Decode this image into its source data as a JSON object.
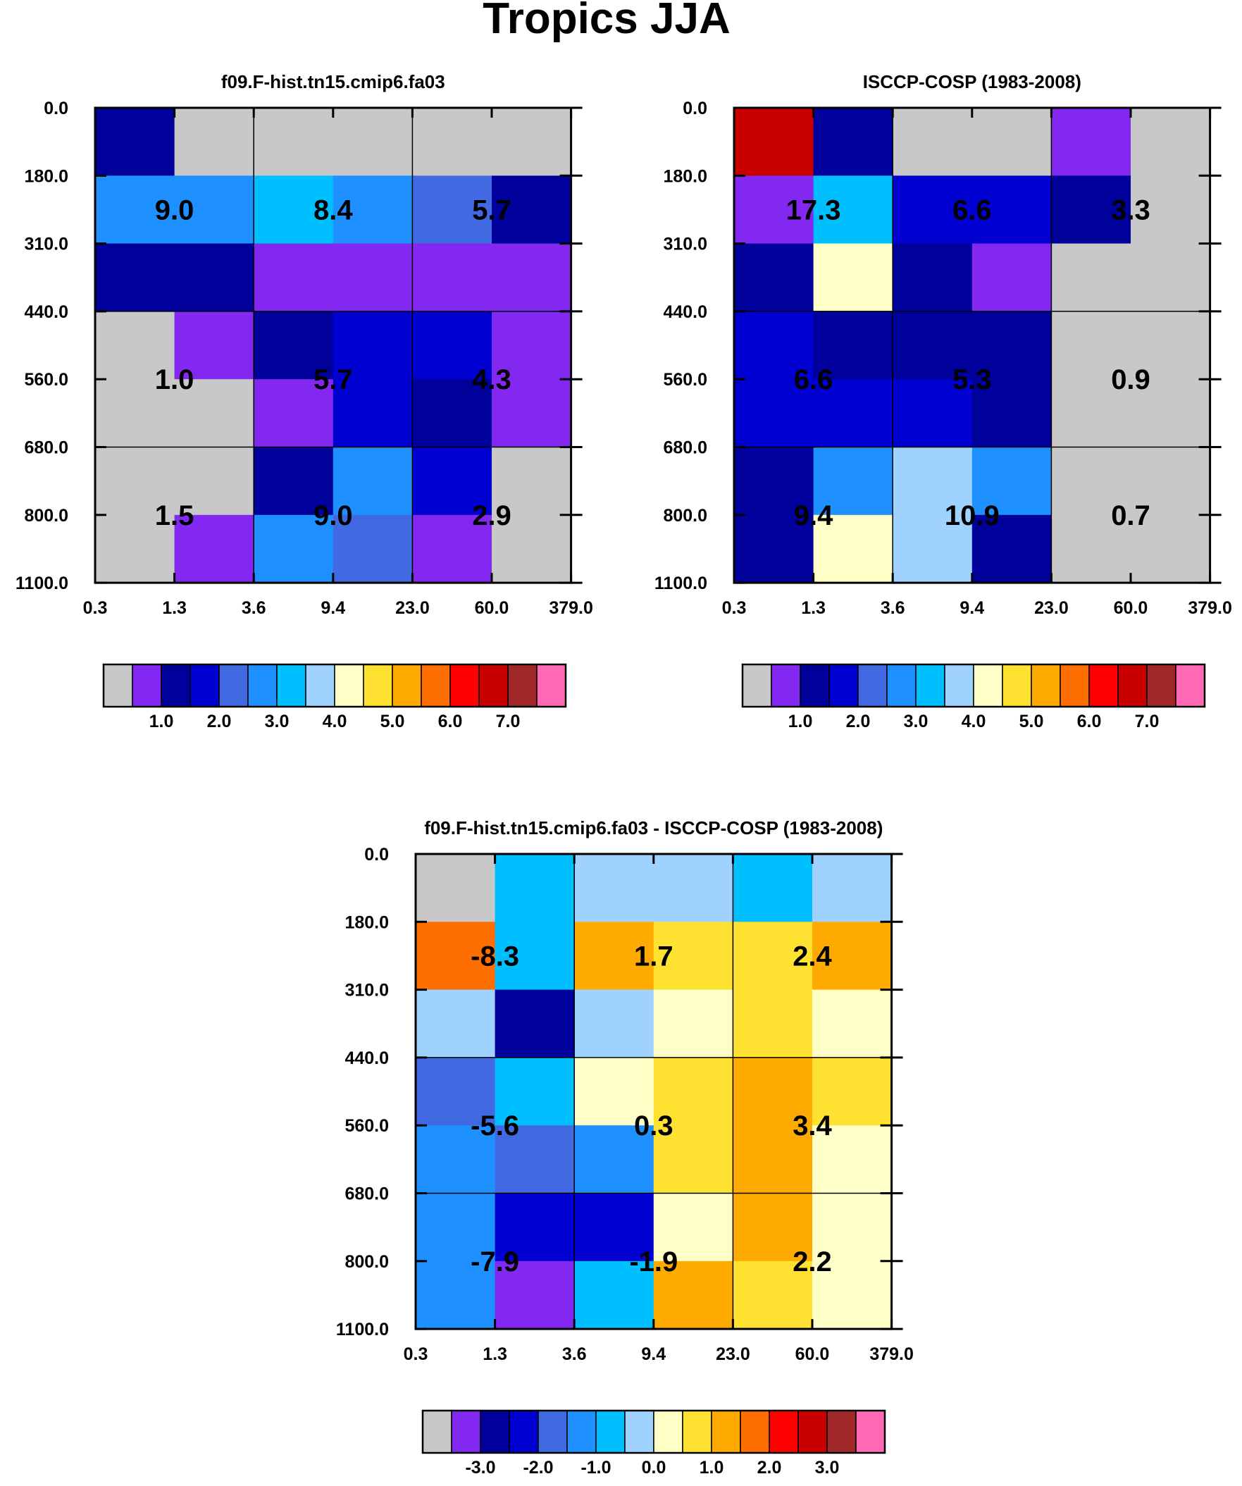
{
  "title": "Tropics JJA",
  "colors": {
    "palette": [
      "#c8c8c8",
      "#8228f0",
      "#00009a",
      "#0000d0",
      "#4169e1",
      "#1e90ff",
      "#00bfff",
      "#a0d2ff",
      "#ffffc8",
      "#ffe132",
      "#ffaa00",
      "#ff6e00",
      "#ff0000",
      "#c80000",
      "#a02828",
      "#ff69b4"
    ],
    "missing": "#c8c8c8"
  },
  "chart_data": [
    {
      "type": "heatmap",
      "title": "f09.F-hist.tn15.cmip6.fa03",
      "x_ticks": [
        "0.3",
        "1.3",
        "3.6",
        "9.4",
        "23.0",
        "60.0",
        "379.0"
      ],
      "y_ticks": [
        "0.0",
        "180.0",
        "310.0",
        "440.0",
        "560.0",
        "680.0",
        "800.0",
        "1100.0"
      ],
      "cells": [
        [
          2,
          0,
          0,
          0,
          0,
          0
        ],
        [
          5,
          5,
          6,
          5,
          4,
          2
        ],
        [
          2,
          2,
          1,
          1,
          1,
          1
        ],
        [
          0,
          1,
          2,
          3,
          3,
          1
        ],
        [
          0,
          0,
          1,
          3,
          2,
          1
        ],
        [
          0,
          0,
          2,
          5,
          3,
          0
        ],
        [
          0,
          1,
          5,
          4,
          1,
          0
        ]
      ],
      "block_labels": [
        {
          "text": "9.0",
          "col": 1,
          "row": 1.5
        },
        {
          "text": "8.4",
          "col": 3,
          "row": 1.5
        },
        {
          "text": "5.7",
          "col": 5,
          "row": 1.5
        },
        {
          "text": "1.0",
          "col": 1,
          "row": 4
        },
        {
          "text": "5.7",
          "col": 3,
          "row": 4
        },
        {
          "text": "4.3",
          "col": 5,
          "row": 4
        },
        {
          "text": "1.5",
          "col": 1,
          "row": 6
        },
        {
          "text": "9.0",
          "col": 3,
          "row": 6
        },
        {
          "text": "2.9",
          "col": 5,
          "row": 6
        }
      ],
      "colorbar": {
        "labels": [
          "1.0",
          "2.0",
          "3.0",
          "4.0",
          "5.0",
          "6.0",
          "7.0"
        ],
        "levels": [
          1,
          2,
          3,
          4,
          5,
          6,
          7
        ]
      }
    },
    {
      "type": "heatmap",
      "title": "ISCCP-COSP (1983-2008)",
      "x_ticks": [
        "0.3",
        "1.3",
        "3.6",
        "9.4",
        "23.0",
        "60.0",
        "379.0"
      ],
      "y_ticks": [
        "0.0",
        "180.0",
        "310.0",
        "440.0",
        "560.0",
        "680.0",
        "800.0",
        "1100.0"
      ],
      "cells": [
        [
          13,
          2,
          0,
          0,
          1,
          0
        ],
        [
          1,
          6,
          3,
          3,
          2,
          0
        ],
        [
          2,
          8,
          2,
          1,
          0,
          0
        ],
        [
          3,
          2,
          2,
          2,
          0,
          0
        ],
        [
          3,
          3,
          3,
          2,
          0,
          0
        ],
        [
          2,
          5,
          7,
          5,
          0,
          0
        ],
        [
          2,
          8,
          7,
          2,
          0,
          0
        ]
      ],
      "block_labels": [
        {
          "text": "17.3",
          "col": 1,
          "row": 1.5
        },
        {
          "text": "6.6",
          "col": 3,
          "row": 1.5
        },
        {
          "text": "3.3",
          "col": 5,
          "row": 1.5
        },
        {
          "text": "6.6",
          "col": 1,
          "row": 4
        },
        {
          "text": "5.3",
          "col": 3,
          "row": 4
        },
        {
          "text": "0.9",
          "col": 5,
          "row": 4
        },
        {
          "text": "9.4",
          "col": 1,
          "row": 6
        },
        {
          "text": "10.9",
          "col": 3,
          "row": 6
        },
        {
          "text": "0.7",
          "col": 5,
          "row": 6
        }
      ],
      "colorbar": {
        "labels": [
          "1.0",
          "2.0",
          "3.0",
          "4.0",
          "5.0",
          "6.0",
          "7.0"
        ],
        "levels": [
          1,
          2,
          3,
          4,
          5,
          6,
          7
        ]
      }
    },
    {
      "type": "heatmap",
      "title": "f09.F-hist.tn15.cmip6.fa03 - ISCCP-COSP (1983-2008)",
      "x_ticks": [
        "0.3",
        "1.3",
        "3.6",
        "9.4",
        "23.0",
        "60.0",
        "379.0"
      ],
      "y_ticks": [
        "0.0",
        "180.0",
        "310.0",
        "440.0",
        "560.0",
        "680.0",
        "800.0",
        "1100.0"
      ],
      "cells": [
        [
          0,
          6,
          7,
          7,
          6,
          7
        ],
        [
          11,
          6,
          10,
          9,
          9,
          10
        ],
        [
          7,
          2,
          7,
          8,
          9,
          8
        ],
        [
          4,
          6,
          8,
          9,
          10,
          9
        ],
        [
          5,
          4,
          5,
          9,
          10,
          8
        ],
        [
          5,
          3,
          3,
          8,
          10,
          8
        ],
        [
          5,
          1,
          6,
          10,
          9,
          8
        ]
      ],
      "block_labels": [
        {
          "text": "-8.3",
          "col": 1,
          "row": 1.5
        },
        {
          "text": "1.7",
          "col": 3,
          "row": 1.5
        },
        {
          "text": "2.4",
          "col": 5,
          "row": 1.5
        },
        {
          "text": "-5.6",
          "col": 1,
          "row": 4
        },
        {
          "text": "0.3",
          "col": 3,
          "row": 4
        },
        {
          "text": "3.4",
          "col": 5,
          "row": 4
        },
        {
          "text": "-7.9",
          "col": 1,
          "row": 6
        },
        {
          "text": "-1.9",
          "col": 3,
          "row": 6
        },
        {
          "text": "2.2",
          "col": 5,
          "row": 6
        }
      ],
      "colorbar": {
        "labels": [
          "-3.0",
          "-2.0",
          "-1.0",
          "0.0",
          "1.0",
          "2.0",
          "3.0"
        ],
        "levels": [
          -3,
          -2,
          -1,
          0,
          1,
          2,
          3
        ]
      }
    }
  ]
}
